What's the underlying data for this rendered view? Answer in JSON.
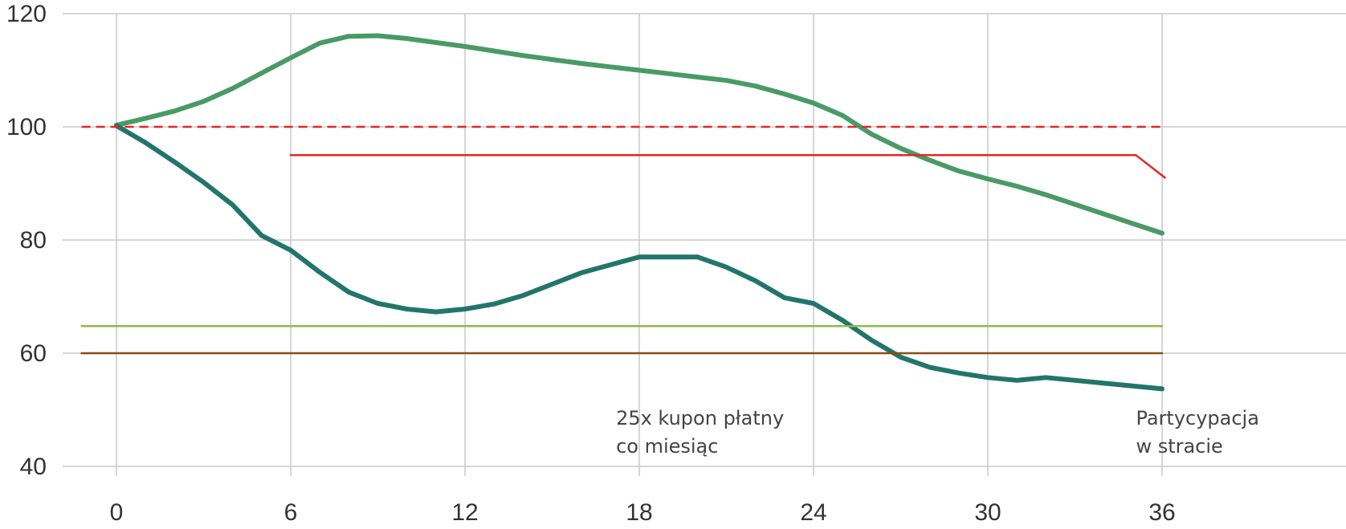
{
  "chart_data": {
    "type": "line",
    "title": "",
    "xlabel": "",
    "ylabel": "",
    "xlim": [
      -1.2,
      42
    ],
    "ylim": [
      40,
      120
    ],
    "x_ticks": [
      0,
      6,
      12,
      18,
      24,
      30,
      36
    ],
    "y_ticks": [
      40,
      60,
      80,
      100,
      120
    ],
    "grid": {
      "horizontal": true,
      "vertical": true
    },
    "legend": "none",
    "series": [
      {
        "color": "#4a9a66",
        "width": 6,
        "points": [
          [
            0,
            100.3
          ],
          [
            1,
            101.5
          ],
          [
            2,
            102.8
          ],
          [
            3,
            104.5
          ],
          [
            4,
            106.8
          ],
          [
            5,
            109.5
          ],
          [
            6,
            112.2
          ],
          [
            7,
            114.8
          ],
          [
            8,
            116
          ],
          [
            9,
            116.1
          ],
          [
            10,
            115.6
          ],
          [
            11,
            114.9
          ],
          [
            12,
            114.2
          ],
          [
            13,
            113.4
          ],
          [
            14,
            112.6
          ],
          [
            15,
            111.9
          ],
          [
            16,
            111.2
          ],
          [
            17,
            110.6
          ],
          [
            18,
            110
          ],
          [
            19,
            109.4
          ],
          [
            20,
            108.8
          ],
          [
            21,
            108.2
          ],
          [
            22,
            107.2
          ],
          [
            23,
            105.8
          ],
          [
            24,
            104.2
          ],
          [
            25,
            102
          ],
          [
            26,
            98.7
          ],
          [
            27,
            96.2
          ],
          [
            28,
            94.1
          ],
          [
            29,
            92.2
          ],
          [
            30,
            90.8
          ],
          [
            31,
            89.5
          ],
          [
            32,
            88
          ],
          [
            33,
            86.3
          ],
          [
            34,
            84.6
          ],
          [
            35,
            82.9
          ],
          [
            36,
            81.2
          ]
        ]
      },
      {
        "color": "#22756a",
        "width": 6,
        "points": [
          [
            0,
            100.2
          ],
          [
            1,
            97.2
          ],
          [
            2,
            93.8
          ],
          [
            3,
            90.2
          ],
          [
            4,
            86.2
          ],
          [
            5,
            80.8
          ],
          [
            6,
            78.2
          ],
          [
            7,
            74.3
          ],
          [
            8,
            70.8
          ],
          [
            9,
            68.8
          ],
          [
            10,
            67.8
          ],
          [
            11,
            67.3
          ],
          [
            12,
            67.8
          ],
          [
            13,
            68.7
          ],
          [
            14,
            70.2
          ],
          [
            15,
            72.2
          ],
          [
            16,
            74.2
          ],
          [
            17,
            75.6
          ],
          [
            18,
            77
          ],
          [
            19,
            77
          ],
          [
            20,
            77
          ],
          [
            21,
            75.2
          ],
          [
            22,
            72.8
          ],
          [
            23,
            69.8
          ],
          [
            24,
            68.8
          ],
          [
            25,
            65.8
          ],
          [
            26,
            62.3
          ],
          [
            27,
            59.3
          ],
          [
            28,
            57.5
          ],
          [
            29,
            56.5
          ],
          [
            30,
            55.7
          ],
          [
            31,
            55.2
          ],
          [
            32,
            55.7
          ],
          [
            33,
            55.2
          ],
          [
            34,
            54.7
          ],
          [
            35,
            54.2
          ],
          [
            36,
            53.7
          ]
        ]
      },
      {
        "color": "#e32626",
        "width": 2.5,
        "dashed": true,
        "points": [
          [
            -1.2,
            100
          ],
          [
            36,
            100
          ]
        ]
      },
      {
        "color": "#e32626",
        "width": 2.5,
        "points": [
          [
            6,
            95
          ],
          [
            35.1,
            95
          ],
          [
            36.1,
            91
          ]
        ]
      },
      {
        "color": "#8dbb48",
        "width": 2.5,
        "points": [
          [
            -1.2,
            64.8
          ],
          [
            36,
            64.8
          ]
        ]
      },
      {
        "color": "#8a4c10",
        "width": 2.5,
        "points": [
          [
            -1.2,
            60
          ],
          [
            36,
            60
          ]
        ]
      }
    ],
    "annotations": [
      {
        "lines": [
          "25x kupon płatny",
          "co miesiąc"
        ],
        "x": 17.2,
        "y": 48.5
      },
      {
        "lines": [
          "Partycypacja",
          "w stracie"
        ],
        "x": 35.1,
        "y": 48.5
      }
    ]
  }
}
